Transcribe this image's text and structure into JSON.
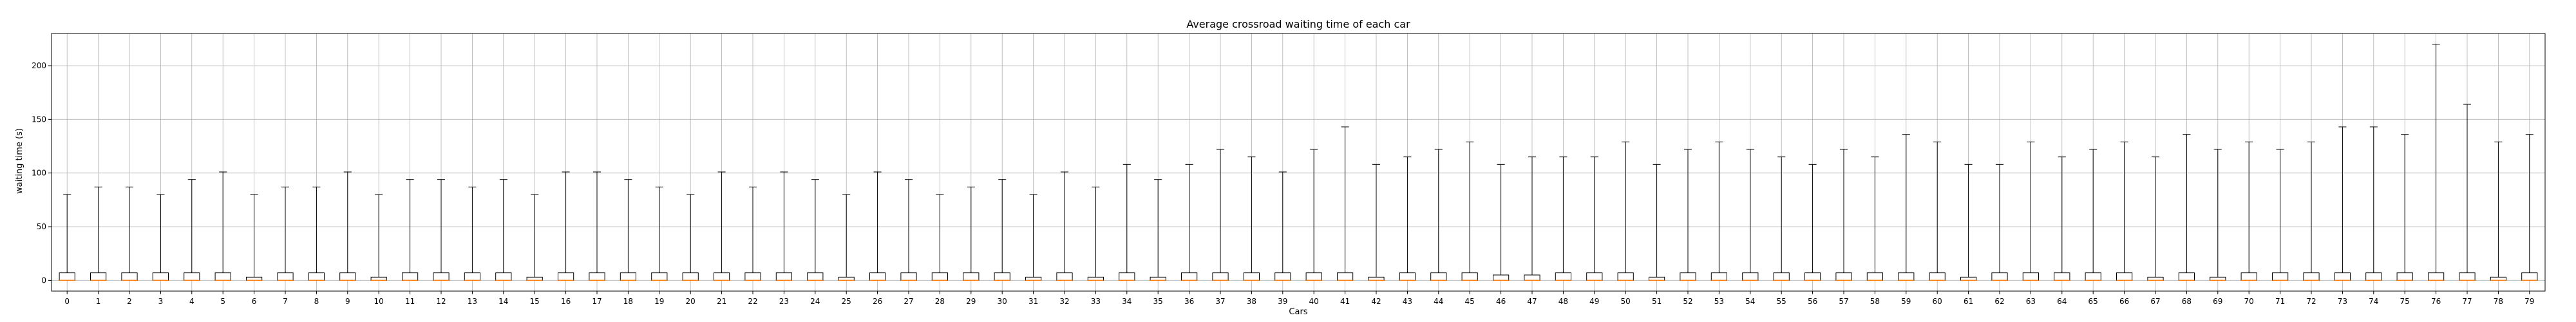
{
  "chart_data": {
    "type": "box",
    "title": "Average crossroad waiting time of each car",
    "xlabel": "Cars",
    "ylabel": "waiting time (s)",
    "ylim": [
      -10,
      230
    ],
    "yticks": [
      0,
      50,
      100,
      150,
      200
    ],
    "grid": true,
    "colors": {
      "box_edge": "#000000",
      "median": "#ff7f0e",
      "whisker": "#000000",
      "grid": "#b0b0b0"
    },
    "categories": [
      "0",
      "1",
      "2",
      "3",
      "4",
      "5",
      "6",
      "7",
      "8",
      "9",
      "10",
      "11",
      "12",
      "13",
      "14",
      "15",
      "16",
      "17",
      "18",
      "19",
      "20",
      "21",
      "22",
      "23",
      "24",
      "25",
      "26",
      "27",
      "28",
      "29",
      "30",
      "31",
      "32",
      "33",
      "34",
      "35",
      "36",
      "37",
      "38",
      "39",
      "40",
      "41",
      "42",
      "43",
      "44",
      "45",
      "46",
      "47",
      "48",
      "49",
      "50",
      "51",
      "52",
      "53",
      "54",
      "55",
      "56",
      "57",
      "58",
      "59",
      "60",
      "61",
      "62",
      "63",
      "64",
      "65",
      "66",
      "67",
      "68",
      "69",
      "70",
      "71",
      "72",
      "73",
      "74",
      "75",
      "76",
      "77",
      "78",
      "79"
    ],
    "q3": [
      7,
      7,
      7,
      7,
      7,
      7,
      3,
      7,
      7,
      7,
      3,
      7,
      7,
      7,
      7,
      3,
      7,
      7,
      7,
      7,
      7,
      7,
      7,
      7,
      7,
      3,
      7,
      7,
      7,
      7,
      7,
      3,
      7,
      3,
      7,
      3,
      7,
      7,
      7,
      7,
      7,
      7,
      3,
      7,
      7,
      7,
      5,
      5,
      7,
      7,
      7,
      3,
      7,
      7,
      7,
      7,
      7,
      7,
      7,
      7,
      7,
      3,
      7,
      7,
      7,
      7,
      7,
      3,
      7,
      3,
      7,
      7,
      7,
      7,
      7,
      7,
      7,
      7,
      3,
      7
    ],
    "median": [
      0,
      0,
      0,
      0,
      0,
      0,
      0,
      0,
      0,
      0,
      0,
      0,
      0,
      0,
      0,
      0,
      0,
      0,
      0,
      0,
      0,
      0,
      0,
      0,
      0,
      0,
      0,
      0,
      0,
      0,
      0,
      0,
      0,
      0,
      0,
      0,
      0,
      0,
      0,
      0,
      0,
      0,
      0,
      0,
      0,
      0,
      0,
      0,
      0,
      0,
      0,
      0,
      0,
      0,
      0,
      0,
      0,
      0,
      0,
      0,
      0,
      0,
      0,
      0,
      0,
      0,
      0,
      0,
      0,
      0,
      0,
      0,
      0,
      0,
      0,
      0,
      0,
      0,
      0,
      0
    ],
    "q1": [
      0,
      0,
      0,
      0,
      0,
      0,
      0,
      0,
      0,
      0,
      0,
      0,
      0,
      0,
      0,
      0,
      0,
      0,
      0,
      0,
      0,
      0,
      0,
      0,
      0,
      0,
      0,
      0,
      0,
      0,
      0,
      0,
      0,
      0,
      0,
      0,
      0,
      0,
      0,
      0,
      0,
      0,
      0,
      0,
      0,
      0,
      0,
      0,
      0,
      0,
      0,
      0,
      0,
      0,
      0,
      0,
      0,
      0,
      0,
      0,
      0,
      0,
      0,
      0,
      0,
      0,
      0,
      0,
      0,
      0,
      0,
      0,
      0,
      0,
      0,
      0,
      0,
      0,
      0,
      0
    ],
    "whisker_low": [
      0,
      0,
      0,
      0,
      0,
      0,
      0,
      0,
      0,
      0,
      0,
      0,
      0,
      0,
      0,
      0,
      0,
      0,
      0,
      0,
      0,
      0,
      0,
      0,
      0,
      0,
      0,
      0,
      0,
      0,
      0,
      0,
      0,
      0,
      0,
      0,
      0,
      0,
      0,
      0,
      0,
      0,
      0,
      0,
      0,
      0,
      0,
      0,
      0,
      0,
      0,
      0,
      0,
      0,
      0,
      0,
      0,
      0,
      0,
      0,
      0,
      0,
      0,
      0,
      0,
      0,
      0,
      0,
      0,
      0,
      0,
      0,
      0,
      0,
      0,
      0,
      0,
      0,
      0,
      0
    ],
    "whisker_high": [
      80,
      87,
      87,
      80,
      94,
      101,
      80,
      87,
      87,
      101,
      80,
      94,
      94,
      87,
      94,
      80,
      101,
      101,
      94,
      87,
      80,
      101,
      87,
      101,
      94,
      80,
      101,
      94,
      80,
      87,
      94,
      80,
      101,
      87,
      108,
      94,
      108,
      122,
      115,
      101,
      122,
      143,
      108,
      115,
      122,
      129,
      108,
      115,
      115,
      115,
      129,
      108,
      122,
      129,
      122,
      115,
      108,
      122,
      115,
      136,
      129,
      108,
      108,
      129,
      115,
      122,
      129,
      115,
      136,
      122,
      129,
      122,
      129,
      143,
      143,
      136,
      220,
      164,
      129,
      136
    ]
  }
}
